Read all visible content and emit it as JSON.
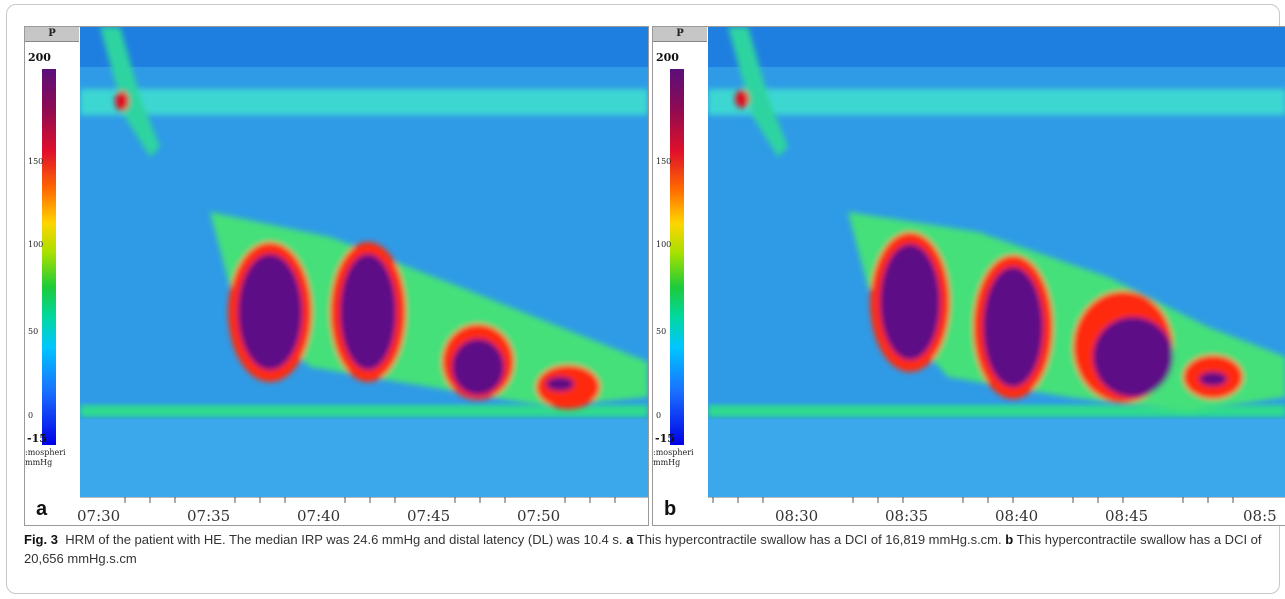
{
  "panel_a": {
    "letter": "a",
    "scale": {
      "header": "P",
      "max": "200",
      "t150": "150",
      "t100": "100",
      "t50": "50",
      "t0": "0",
      "min": "-15",
      "unit_line1": ":mospheri",
      "unit_line2": "mmHg"
    },
    "times": [
      "07:30",
      "07:35",
      "07:40",
      "07:45",
      "07:50"
    ]
  },
  "panel_b": {
    "letter": "b",
    "scale": {
      "header": "P",
      "max": "200",
      "t150": "150",
      "t100": "100",
      "t50": "50",
      "t0": "0",
      "min": "-15",
      "unit_line1": ":mospheri",
      "unit_line2": "mmHg"
    },
    "times": [
      "08:30",
      "08:35",
      "08:40",
      "08:45",
      "08:5"
    ]
  },
  "caption": {
    "label": "Fig. 3",
    "text1": "HRM of the patient with HE. The median IRP was 24.6 mmHg and distal latency (DL) was 10.4 s.",
    "a_letter": "a",
    "text2": "This hypercontractile swallow has a DCI of 16,819 mmHg.s.cm.",
    "b_letter": "b",
    "text3": "This hypercontractile swallow has a DCI of 20,656 mmHg.s.cm"
  }
}
